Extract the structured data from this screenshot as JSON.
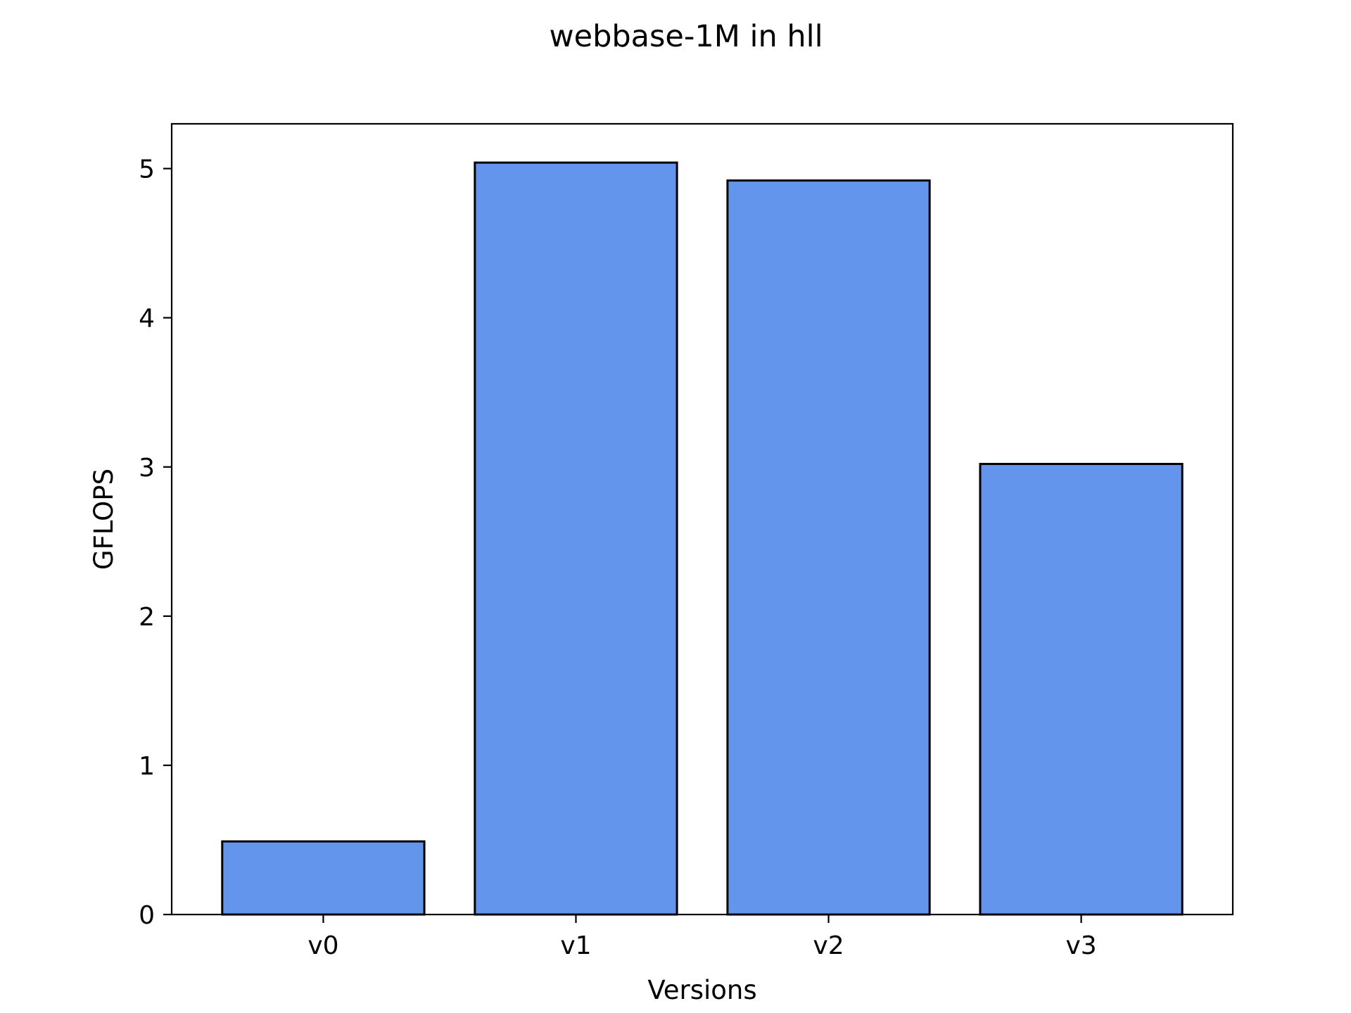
{
  "chart_data": {
    "type": "bar",
    "title": "webbase-1M in hll",
    "xlabel": "Versions",
    "ylabel": "GFLOPS",
    "categories": [
      "v0",
      "v1",
      "v2",
      "v3"
    ],
    "values": [
      0.49,
      5.04,
      4.92,
      3.02
    ],
    "ylim": [
      0,
      5.3
    ],
    "yticks": [
      "0",
      "1",
      "2",
      "3",
      "4",
      "5"
    ],
    "grid": false,
    "legend": "none",
    "colors": {
      "bar_fill": "#6495ED",
      "bar_edge": "#000000",
      "axes": "#000000",
      "background": "#ffffff"
    }
  }
}
